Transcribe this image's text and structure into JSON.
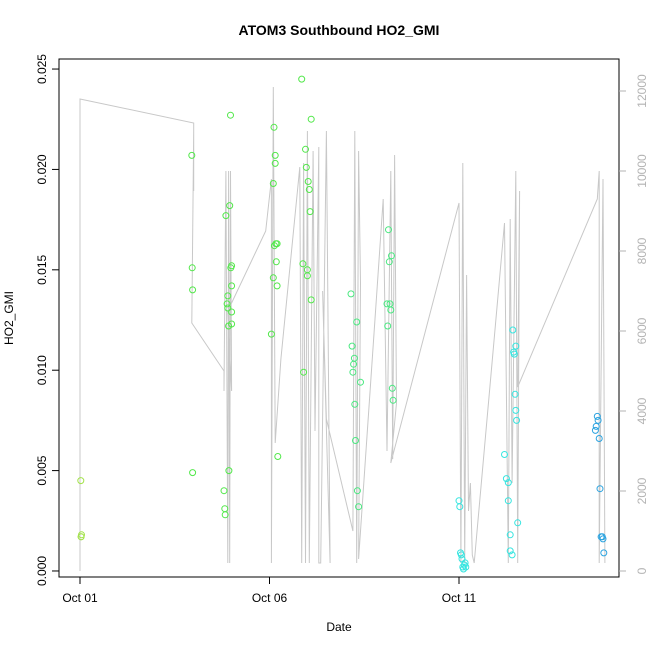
{
  "chart_data": {
    "type": "scatter",
    "title": "ATOM3 Southbound HO2_GMI",
    "xlabel": "Date",
    "ylabel": "HO2_GMI",
    "x_range_days": [
      0,
      18
    ],
    "ylim": [
      -0.0003,
      0.0255
    ],
    "y_ticks": [
      0.0,
      0.005,
      0.01,
      0.015,
      0.02,
      0.025
    ],
    "y_tick_labels": [
      "0.000",
      "0.005",
      "0.010",
      "0.015",
      "0.020",
      "0.025"
    ],
    "x_ticks": [
      0,
      5,
      10
    ],
    "x_tick_labels": [
      "Oct 01",
      "Oct 06",
      "Oct 11"
    ],
    "secondary_axis": {
      "ylim": [
        -150,
        12800
      ],
      "ticks": [
        0,
        2000,
        4000,
        6000,
        8000,
        10000,
        12000
      ],
      "tick_labels": [
        "0",
        "2000",
        "4000",
        "6000",
        "8000",
        "10000",
        "12000"
      ],
      "color": "#b3b3b3"
    },
    "grid": false,
    "legend": "none",
    "altitude_trace": [
      [
        0.0,
        0
      ],
      [
        0.0,
        11800
      ],
      [
        3.0,
        11200
      ],
      [
        3.0,
        9500
      ],
      [
        3.0,
        11000
      ],
      [
        2.95,
        6200
      ],
      [
        3.8,
        5000
      ],
      [
        3.8,
        4500
      ],
      [
        3.85,
        10000
      ],
      [
        3.9,
        200
      ],
      [
        3.92,
        10000
      ],
      [
        3.95,
        200
      ],
      [
        3.97,
        10000
      ],
      [
        4.0,
        4500
      ],
      [
        3.9,
        6500
      ],
      [
        4.9,
        8500
      ],
      [
        5.05,
        9800
      ],
      [
        5.05,
        200
      ],
      [
        5.1,
        12100
      ],
      [
        5.15,
        3200
      ],
      [
        5.3,
        5300
      ],
      [
        5.8,
        10100
      ],
      [
        5.85,
        200
      ],
      [
        5.9,
        10200
      ],
      [
        5.95,
        200
      ],
      [
        6.0,
        11000
      ],
      [
        6.05,
        200
      ],
      [
        6.15,
        10500
      ],
      [
        6.2,
        3500
      ],
      [
        6.3,
        10600
      ],
      [
        6.3,
        200
      ],
      [
        6.35,
        200
      ],
      [
        6.5,
        11000
      ],
      [
        6.6,
        200
      ],
      [
        6.4,
        7000
      ],
      [
        6.5,
        3800
      ],
      [
        7.2,
        1000
      ],
      [
        7.25,
        11000
      ],
      [
        7.3,
        200
      ],
      [
        7.35,
        10500
      ],
      [
        7.4,
        7200
      ],
      [
        7.35,
        300
      ],
      [
        8.0,
        9300
      ],
      [
        8.1,
        3000
      ],
      [
        8.2,
        10000
      ],
      [
        8.25,
        2800
      ],
      [
        8.3,
        10400
      ],
      [
        8.35,
        4200
      ],
      [
        8.2,
        2700
      ],
      [
        10.0,
        9200
      ],
      [
        10.05,
        200
      ],
      [
        10.1,
        10200
      ],
      [
        10.15,
        200
      ],
      [
        10.2,
        7400
      ],
      [
        10.25,
        1500
      ],
      [
        10.3,
        2200
      ],
      [
        10.35,
        400
      ],
      [
        10.4,
        200
      ],
      [
        11.2,
        8700
      ],
      [
        11.3,
        200
      ],
      [
        11.35,
        8800
      ],
      [
        11.4,
        2200
      ],
      [
        11.5,
        10000
      ],
      [
        11.55,
        200
      ],
      [
        11.6,
        9500
      ],
      [
        11.55,
        4600
      ],
      [
        13.65,
        9300
      ],
      [
        13.7,
        10000
      ],
      [
        13.7,
        200
      ],
      [
        13.8,
        9800
      ],
      [
        13.85,
        200
      ]
    ],
    "series": [
      {
        "color": "#a3e34a",
        "points": [
          [
            0.02,
            0.0045
          ],
          [
            0.03,
            0.0017
          ],
          [
            0.03,
            0.0017
          ],
          [
            0.04,
            0.0018
          ]
        ]
      },
      {
        "color": "#52e84a",
        "points": [
          [
            2.95,
            0.0207
          ],
          [
            2.96,
            0.0151
          ],
          [
            2.97,
            0.014
          ],
          [
            2.97,
            0.0049
          ],
          [
            3.8,
            0.004
          ],
          [
            3.82,
            0.0031
          ],
          [
            3.83,
            0.0028
          ],
          [
            3.85,
            0.0177
          ],
          [
            3.88,
            0.0133
          ],
          [
            3.9,
            0.0137
          ],
          [
            3.9,
            0.0131
          ],
          [
            3.92,
            0.0122
          ],
          [
            3.93,
            0.005
          ],
          [
            3.95,
            0.0182
          ],
          [
            3.97,
            0.0227
          ],
          [
            3.98,
            0.0151
          ],
          [
            4.0,
            0.0142
          ],
          [
            4.0,
            0.0152
          ],
          [
            4.0,
            0.0123
          ],
          [
            4.0,
            0.0129
          ],
          [
            5.05,
            0.0118
          ],
          [
            5.1,
            0.0146
          ],
          [
            5.1,
            0.0193
          ],
          [
            5.12,
            0.0221
          ],
          [
            5.13,
            0.0162
          ],
          [
            5.15,
            0.0207
          ],
          [
            5.15,
            0.0203
          ],
          [
            5.17,
            0.0163
          ],
          [
            5.18,
            0.0154
          ],
          [
            5.2,
            0.0142
          ],
          [
            5.2,
            0.0163
          ],
          [
            5.22,
            0.0057
          ],
          [
            5.85,
            0.0245
          ],
          [
            5.88,
            0.0153
          ],
          [
            5.9,
            0.0099
          ],
          [
            5.95,
            0.021
          ],
          [
            5.97,
            0.0201
          ],
          [
            6.0,
            0.015
          ],
          [
            6.0,
            0.0147
          ],
          [
            6.02,
            0.0194
          ],
          [
            6.05,
            0.019
          ],
          [
            6.07,
            0.0179
          ],
          [
            6.1,
            0.0225
          ],
          [
            6.1,
            0.0135
          ]
        ]
      },
      {
        "color": "#4ae880",
        "points": [
          [
            7.15,
            0.0138
          ],
          [
            7.18,
            0.0112
          ],
          [
            7.2,
            0.0099
          ],
          [
            7.22,
            0.0103
          ],
          [
            7.24,
            0.0106
          ],
          [
            7.25,
            0.0083
          ],
          [
            7.27,
            0.0065
          ],
          [
            7.3,
            0.0124
          ],
          [
            7.32,
            0.004
          ],
          [
            7.35,
            0.0032
          ],
          [
            7.4,
            0.0094
          ],
          [
            8.1,
            0.0133
          ],
          [
            8.12,
            0.0122
          ],
          [
            8.14,
            0.017
          ],
          [
            8.16,
            0.0154
          ],
          [
            8.18,
            0.0133
          ],
          [
            8.2,
            0.013
          ],
          [
            8.22,
            0.0157
          ],
          [
            8.24,
            0.0091
          ],
          [
            8.26,
            0.0085
          ]
        ]
      },
      {
        "color": "#36e5e0",
        "points": [
          [
            10.0,
            0.0035
          ],
          [
            10.02,
            0.0032
          ],
          [
            10.04,
            0.0009
          ],
          [
            10.06,
            0.0008
          ],
          [
            10.08,
            0.0006
          ],
          [
            10.1,
            0.0002
          ],
          [
            10.12,
            0.0001
          ],
          [
            10.14,
            0.0003
          ],
          [
            10.16,
            0.0004
          ],
          [
            10.18,
            0.0002
          ],
          [
            11.2,
            0.0058
          ],
          [
            11.25,
            0.0046
          ],
          [
            11.3,
            0.0044
          ],
          [
            11.3,
            0.0035
          ],
          [
            11.35,
            0.0018
          ],
          [
            11.35,
            0.001
          ],
          [
            11.4,
            0.0008
          ],
          [
            11.42,
            0.012
          ],
          [
            11.44,
            0.0109
          ],
          [
            11.46,
            0.0108
          ],
          [
            11.48,
            0.0088
          ],
          [
            11.5,
            0.008
          ],
          [
            11.52,
            0.0075
          ],
          [
            11.55,
            0.0024
          ],
          [
            11.5,
            0.0112
          ]
        ]
      },
      {
        "color": "#2aa3e0",
        "points": [
          [
            13.6,
            0.007
          ],
          [
            13.62,
            0.0072
          ],
          [
            13.65,
            0.0077
          ],
          [
            13.67,
            0.0075
          ],
          [
            13.7,
            0.0066
          ],
          [
            13.72,
            0.0041
          ],
          [
            13.75,
            0.0017
          ],
          [
            13.78,
            0.0017
          ],
          [
            13.8,
            0.0016
          ],
          [
            13.82,
            0.0009
          ]
        ]
      }
    ]
  }
}
